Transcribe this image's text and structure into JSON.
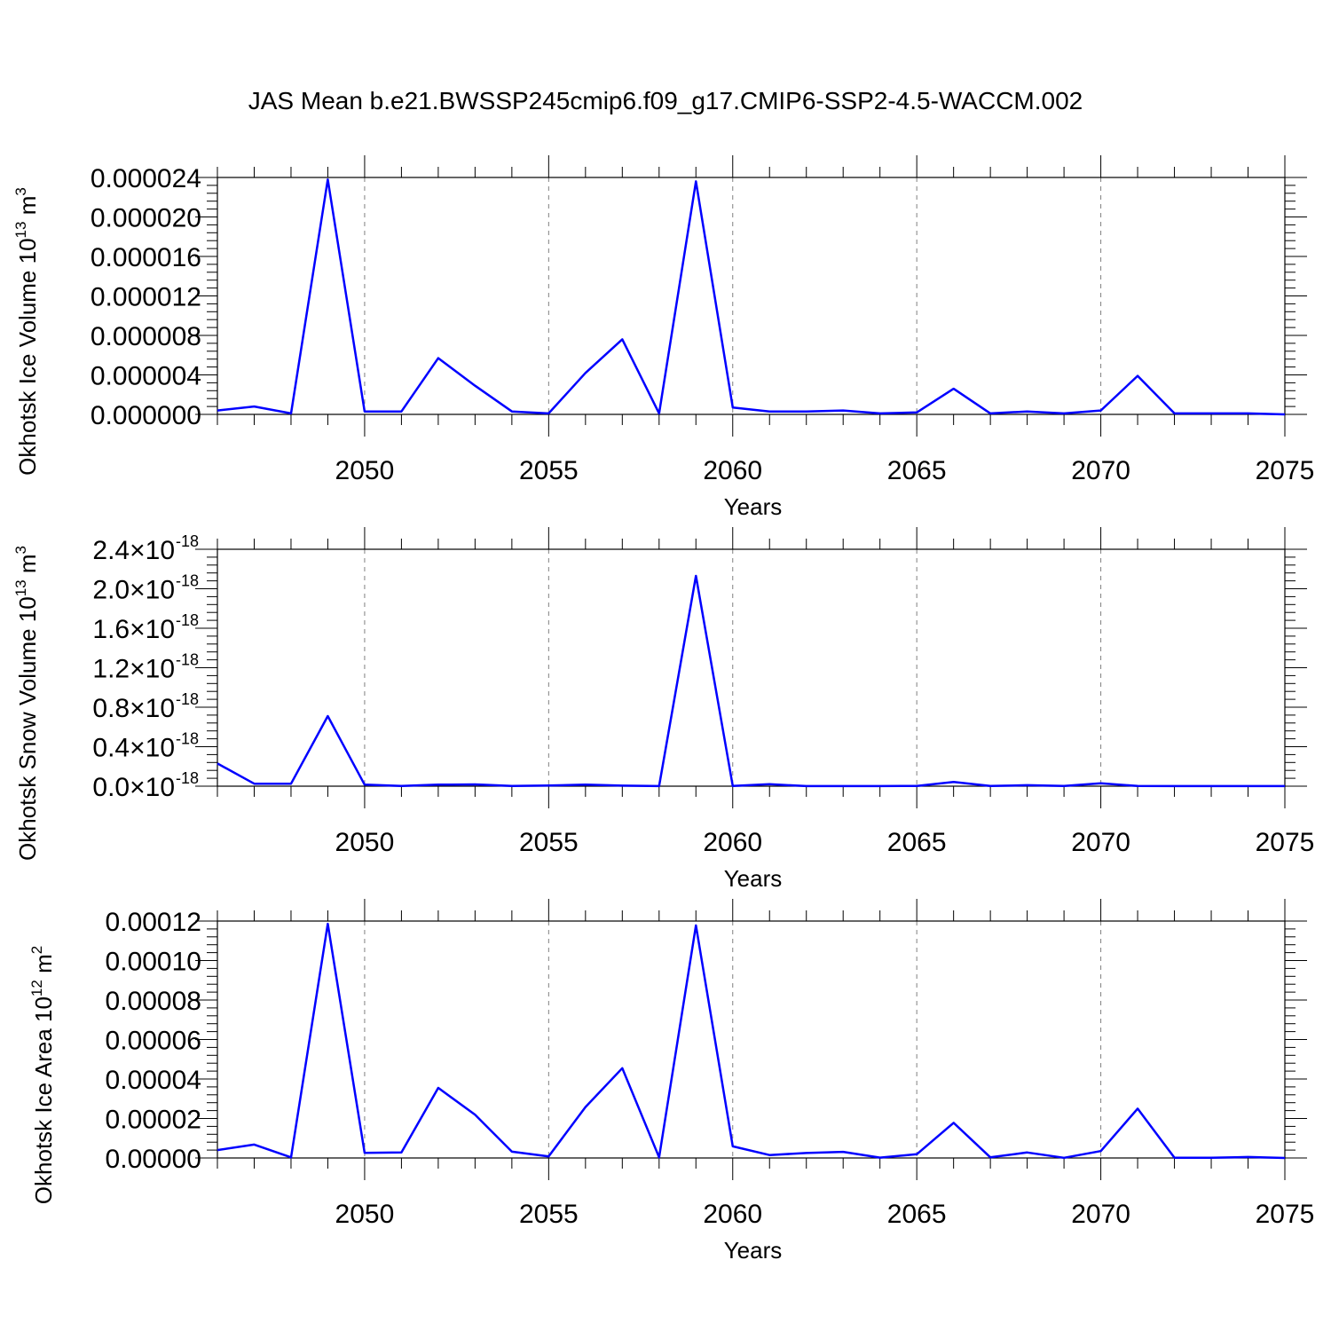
{
  "title": "JAS Mean b.e21.BWSSP245cmip6.f09_g17.CMIP6-SSP2-4.5-WACCM.002",
  "colors": {
    "line": "#0000ff",
    "axis": "#000000",
    "grid": "#808080"
  },
  "chart_data": [
    {
      "type": "line",
      "xlabel": "Years",
      "ylabel_main": "Okhotsk Ice Volume 10",
      "ylabel_sup1": "13",
      "ylabel_mid": " m",
      "ylabel_sup2": "3",
      "xlim": [
        2046,
        2075
      ],
      "ylim": [
        0,
        2.4e-05
      ],
      "x_ticks": [
        2050,
        2055,
        2060,
        2065,
        2070,
        2075
      ],
      "x_tick_labels": [
        "2050",
        "2055",
        "2060",
        "2065",
        "2070",
        "2075"
      ],
      "y_ticks": [
        0,
        4e-06,
        8e-06,
        1.2e-05,
        1.6e-05,
        2e-05,
        2.4e-05
      ],
      "y_tick_labels": [
        "0.000000",
        "0.000004",
        "0.000008",
        "0.000012",
        "0.000016",
        "0.000020",
        "0.000024"
      ],
      "grid": "vertical dashed at major x ticks",
      "x": [
        2046,
        2047,
        2048,
        2049,
        2050,
        2051,
        2052,
        2053,
        2054,
        2055,
        2056,
        2057,
        2058,
        2059,
        2060,
        2061,
        2062,
        2063,
        2064,
        2065,
        2066,
        2067,
        2068,
        2069,
        2070,
        2071,
        2072,
        2073,
        2074,
        2075
      ],
      "y": [
        4e-07,
        8e-07,
        1e-07,
        2.38e-05,
        3e-07,
        3e-07,
        5.7e-06,
        2.9e-06,
        3e-07,
        1e-07,
        4.2e-06,
        7.6e-06,
        1e-07,
        2.36e-05,
        7e-07,
        3e-07,
        3e-07,
        4e-07,
        1e-07,
        2e-07,
        2.6e-06,
        1e-07,
        3e-07,
        1e-07,
        4e-07,
        3.9e-06,
        1e-07,
        1e-07,
        1e-07,
        0.0
      ]
    },
    {
      "type": "line",
      "xlabel": "Years",
      "ylabel_main": "Okhotsk Snow Volume 10",
      "ylabel_sup1": "13",
      "ylabel_mid": " m",
      "ylabel_sup2": "3",
      "xlim": [
        2046,
        2075
      ],
      "ylim": [
        0,
        2.4e-18
      ],
      "x_ticks": [
        2050,
        2055,
        2060,
        2065,
        2070,
        2075
      ],
      "x_tick_labels": [
        "2050",
        "2055",
        "2060",
        "2065",
        "2070",
        "2075"
      ],
      "y_ticks": [
        0,
        4e-19,
        8e-19,
        1.2e-18,
        1.6e-18,
        2e-18,
        2.4e-18
      ],
      "y_tick_mantissas": [
        "0.0",
        "0.4",
        "0.8",
        "1.2",
        "1.6",
        "2.0",
        "2.4"
      ],
      "y_tick_times": "×10",
      "y_tick_exponent": "-18",
      "grid": "vertical dashed at major x ticks",
      "x": [
        2046,
        2047,
        2048,
        2049,
        2050,
        2051,
        2052,
        2053,
        2054,
        2055,
        2056,
        2057,
        2058,
        2059,
        2060,
        2061,
        2062,
        2063,
        2064,
        2065,
        2066,
        2067,
        2068,
        2069,
        2070,
        2071,
        2072,
        2073,
        2074,
        2075
      ],
      "y": [
        2.3e-19,
        2.5e-20,
        2.5e-20,
        7.1e-19,
        1.5e-20,
        2e-21,
        1.5e-20,
        1.8e-20,
        2e-21,
        6e-21,
        1.5e-20,
        5e-21,
        1e-21,
        2.13e-18,
        2e-21,
        2e-20,
        1e-21,
        1e-21,
        1e-21,
        3e-21,
        4.2e-20,
        2e-21,
        1e-20,
        2e-21,
        3e-20,
        2e-21,
        1e-21,
        1e-21,
        1e-21,
        1e-21
      ]
    },
    {
      "type": "line",
      "xlabel": "Years",
      "ylabel_main": "Okhotsk Ice Area 10",
      "ylabel_sup1": "12",
      "ylabel_mid": " m",
      "ylabel_sup2": "2",
      "xlim": [
        2046,
        2075
      ],
      "ylim": [
        0,
        0.00012
      ],
      "x_ticks": [
        2050,
        2055,
        2060,
        2065,
        2070,
        2075
      ],
      "x_tick_labels": [
        "2050",
        "2055",
        "2060",
        "2065",
        "2070",
        "2075"
      ],
      "y_ticks": [
        0,
        2e-05,
        4e-05,
        6e-05,
        8e-05,
        0.0001,
        0.00012
      ],
      "y_tick_labels": [
        "0.00000",
        "0.00002",
        "0.00004",
        "0.00006",
        "0.00008",
        "0.00010",
        "0.00012"
      ],
      "grid": "vertical dashed at major x ticks",
      "x": [
        2046,
        2047,
        2048,
        2049,
        2050,
        2051,
        2052,
        2053,
        2054,
        2055,
        2056,
        2057,
        2058,
        2059,
        2060,
        2061,
        2062,
        2063,
        2064,
        2065,
        2066,
        2067,
        2068,
        2069,
        2070,
        2071,
        2072,
        2073,
        2074,
        2075
      ],
      "y": [
        4e-06,
        6.8e-06,
        3e-07,
        0.0001186,
        2.6e-06,
        2.8e-06,
        3.55e-05,
        2.19e-05,
        3.2e-06,
        8e-07,
        2.58e-05,
        4.55e-05,
        3e-07,
        0.0001178,
        5.9e-06,
        1.5e-06,
        2.5e-06,
        3.1e-06,
        2e-07,
        1.9e-06,
        1.78e-05,
        3e-07,
        2.8e-06,
        1e-07,
        3.5e-06,
        2.5e-05,
        1e-07,
        1e-07,
        5e-07,
        0.0
      ]
    }
  ]
}
